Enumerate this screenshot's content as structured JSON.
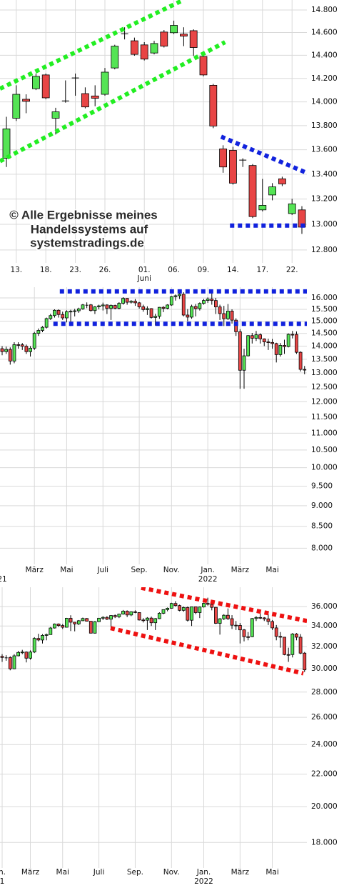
{
  "chart_data": [
    {
      "type": "candlestick",
      "log_scale": true,
      "grid": true,
      "up_color": "#55e455",
      "down_color": "#e84545",
      "annotations": [
        "© Alle Ergebnisse meines",
        "Handelssystems auf",
        "systemstradings.de"
      ],
      "categories": [
        null,
        "13.",
        null,
        null,
        "18.",
        null,
        null,
        "23.",
        null,
        null,
        "26.",
        null,
        null,
        null,
        "01.",
        null,
        null,
        "06.",
        null,
        null,
        "09.",
        null,
        null,
        "14.",
        null,
        null,
        "17.",
        null,
        null,
        "22.",
        null
      ],
      "x_sublabels": [
        {
          "index": 14,
          "label": "Juni"
        }
      ],
      "open": [
        13530,
        13862,
        14022,
        14112,
        14230,
        13862,
        14011,
        14207,
        14070,
        14050,
        14064,
        14290,
        14592,
        14527,
        14491,
        14420,
        14604,
        14598,
        14586,
        14616,
        14390,
        14141,
        13607,
        13595,
        13518,
        13471,
        13114,
        13233,
        13363,
        13085,
        13114
      ],
      "high": [
        13874,
        14141,
        14064,
        14242,
        14242,
        13950,
        14183,
        14242,
        14123,
        14141,
        14290,
        14492,
        14646,
        14555,
        14515,
        14527,
        14622,
        14705,
        14646,
        14628,
        14420,
        14153,
        13637,
        13625,
        13530,
        13483,
        13362,
        13328,
        13380,
        13202,
        13143
      ],
      "low": [
        13459,
        13839,
        13904,
        14100,
        14022,
        13726,
        13993,
        14052,
        13945,
        13963,
        14052,
        14278,
        14539,
        14396,
        14355,
        14408,
        14468,
        14586,
        14480,
        14396,
        14218,
        13779,
        13412,
        13316,
        13459,
        13049,
        13102,
        13190,
        13304,
        13073,
        12925
      ],
      "close": [
        13773,
        14064,
        14005,
        14218,
        14034,
        13916,
        14011,
        14207,
        13957,
        14030,
        14254,
        14480,
        14592,
        14408,
        14367,
        14503,
        14480,
        14663,
        14568,
        14468,
        14230,
        13797,
        13459,
        13328,
        13518,
        13061,
        13150,
        13298,
        13322,
        13162,
        12978
      ],
      "trendlines": [
        {
          "color": "#22ee22",
          "points": [
            [
              -0.65,
              14112
            ],
            [
              17.8,
              14883
            ]
          ]
        },
        {
          "color": "#22ee22",
          "points": [
            [
              -0.65,
              13506
            ],
            [
              22.2,
              14515
            ]
          ]
        },
        {
          "color": "#1122dd",
          "points": [
            [
              21.8,
              13708
            ],
            [
              30.5,
              13411
            ]
          ]
        },
        {
          "color": "#1122dd",
          "points": [
            [
              22.7,
              12990
            ],
            [
              30.5,
              12990
            ]
          ]
        }
      ],
      "ylim": [
        12700,
        14890
      ],
      "yticks": [
        {
          "value": 12800,
          "label": "12.800"
        },
        {
          "value": 13000,
          "label": "13.000"
        },
        {
          "value": 13200,
          "label": "13.200"
        },
        {
          "value": 13400,
          "label": "13.400"
        },
        {
          "value": 13600,
          "label": "13.600"
        },
        {
          "value": 13800,
          "label": "13.800"
        },
        {
          "value": 14000,
          "label": "14.000"
        },
        {
          "value": 14200,
          "label": "14.200"
        },
        {
          "value": 14400,
          "label": "14.400"
        },
        {
          "value": 14600,
          "label": "14.600"
        },
        {
          "value": 14800,
          "label": "14.800"
        }
      ]
    },
    {
      "type": "candlestick",
      "log_scale": true,
      "grid": true,
      "up_color": "#55e455",
      "down_color": "#e84545",
      "categories": [
        null,
        null,
        null,
        null,
        null,
        null,
        null,
        null,
        "März",
        null,
        null,
        null,
        null,
        null,
        null,
        null,
        "Mai",
        null,
        null,
        null,
        null,
        null,
        null,
        null,
        null,
        "Juli",
        null,
        null,
        null,
        null,
        null,
        null,
        null,
        null,
        "Sep.",
        null,
        null,
        null,
        null,
        null,
        null,
        null,
        "Nov.",
        null,
        null,
        null,
        null,
        null,
        null,
        null,
        null,
        "Jan.",
        null,
        null,
        null,
        null,
        null,
        null,
        null,
        "März",
        null,
        null,
        null,
        null,
        null,
        null,
        null,
        "Mai",
        null,
        null,
        null,
        null,
        null,
        null,
        null,
        null
      ],
      "x_sublabels": [
        {
          "index": 0,
          "label": "21"
        },
        {
          "index": 51,
          "label": "2022"
        }
      ],
      "open": [
        13900,
        13788,
        13873,
        13433,
        14056,
        14050,
        13993,
        13786,
        13920,
        14502,
        14621,
        14749,
        15107,
        15234,
        15459,
        15280,
        15136,
        15400,
        15417,
        15437,
        15520,
        15693,
        15693,
        15448,
        15607,
        15650,
        15688,
        15540,
        15669,
        15544,
        15761,
        15977,
        15808,
        15852,
        15781,
        15609,
        15490,
        15531,
        15156,
        15206,
        15587,
        15542,
        15688,
        16054,
        16094,
        16160,
        15257,
        15169,
        15623,
        15532,
        15756,
        15885,
        15947,
        15883,
        15603,
        15318,
        15100,
        15425,
        15042,
        14567,
        13094,
        13628,
        14413,
        14306,
        14446,
        14284,
        14164,
        14142,
        14098,
        13674,
        14027,
        13982,
        14462,
        14460,
        13762,
        13126
      ],
      "high": [
        14000,
        13980,
        13950,
        14150,
        14150,
        14120,
        14060,
        14000,
        14560,
        14700,
        14800,
        15150,
        15310,
        15500,
        15500,
        15400,
        15460,
        15480,
        15520,
        15570,
        15730,
        15800,
        15730,
        15640,
        15700,
        15790,
        15720,
        15710,
        15700,
        15810,
        16030,
        15990,
        15900,
        15950,
        15820,
        15700,
        15630,
        15550,
        15310,
        15600,
        15640,
        15720,
        16080,
        16150,
        16290,
        16250,
        15510,
        15700,
        15730,
        15800,
        15950,
        16020,
        16290,
        16000,
        15700,
        15650,
        15730,
        15500,
        15120,
        14670,
        13900,
        14430,
        14520,
        14600,
        14500,
        14300,
        14290,
        14280,
        14130,
        14120,
        14250,
        14500,
        14600,
        14580,
        13800,
        13250
      ],
      "low": [
        13650,
        13700,
        13300,
        13350,
        13900,
        13850,
        13700,
        13600,
        13850,
        14400,
        14550,
        14700,
        15050,
        15150,
        15150,
        15050,
        14950,
        14800,
        15200,
        15350,
        15480,
        15550,
        15400,
        15300,
        15500,
        15450,
        15300,
        15050,
        15500,
        15500,
        15700,
        15700,
        15750,
        15650,
        15530,
        15400,
        15260,
        15110,
        14820,
        15100,
        15380,
        15500,
        15650,
        15880,
        15950,
        15200,
        15000,
        15100,
        15200,
        15450,
        15700,
        15780,
        15700,
        15300,
        15050,
        14800,
        15050,
        14900,
        14400,
        12440,
        12440,
        13600,
        14100,
        14200,
        14100,
        14000,
        13850,
        13900,
        13380,
        13600,
        13700,
        13950,
        14300,
        13700,
        13050,
        12950
      ],
      "close": [
        13788,
        13873,
        13433,
        14056,
        14050,
        13993,
        13786,
        13920,
        14502,
        14621,
        14749,
        15107,
        15234,
        15459,
        15280,
        15136,
        15400,
        15417,
        15437,
        15520,
        15693,
        15693,
        15448,
        15607,
        15650,
        15688,
        15540,
        15669,
        15544,
        15761,
        15977,
        15808,
        15852,
        15781,
        15609,
        15490,
        15531,
        15156,
        15206,
        15587,
        15542,
        15688,
        16054,
        16094,
        16160,
        15257,
        15169,
        15623,
        15532,
        15756,
        15885,
        15947,
        15883,
        15603,
        15318,
        15100,
        15425,
        15042,
        14567,
        13094,
        13628,
        14413,
        14306,
        14446,
        14284,
        14164,
        14142,
        14098,
        13674,
        14027,
        13982,
        14462,
        14460,
        13762,
        13126,
        13118
      ],
      "trendlines": [
        {
          "color": "#1122dd",
          "points": [
            [
              14.3,
              16290
            ],
            [
              75.9,
              16290
            ]
          ]
        },
        {
          "color": "#1122dd",
          "points": [
            [
              12.7,
              14893
            ],
            [
              75.9,
              14893
            ]
          ]
        }
      ],
      "ylim": [
        7650,
        16480
      ],
      "yticks": [
        {
          "value": 8000,
          "label": "8.000"
        },
        {
          "value": 8500,
          "label": "8.500"
        },
        {
          "value": 9000,
          "label": "9.000"
        },
        {
          "value": 9500,
          "label": "9.500"
        },
        {
          "value": 10000,
          "label": "10.000"
        },
        {
          "value": 10500,
          "label": "10.500"
        },
        {
          "value": 11000,
          "label": "11.000"
        },
        {
          "value": 11500,
          "label": "11.500"
        },
        {
          "value": 12000,
          "label": "12.000"
        },
        {
          "value": 12500,
          "label": "12.500"
        },
        {
          "value": 13000,
          "label": "13.000"
        },
        {
          "value": 13500,
          "label": "13.500"
        },
        {
          "value": 14000,
          "label": "14.000"
        },
        {
          "value": 14500,
          "label": "14.500"
        },
        {
          "value": 15000,
          "label": "15.000"
        },
        {
          "value": 15500,
          "label": "15.500"
        },
        {
          "value": 16000,
          "label": "16.000"
        }
      ]
    },
    {
      "type": "candlestick",
      "log_scale": true,
      "grid": true,
      "up_color": "#55e455",
      "down_color": "#e84545",
      "categories": [
        "n.",
        null,
        null,
        null,
        null,
        null,
        null,
        "März",
        null,
        null,
        null,
        null,
        null,
        null,
        null,
        "Mai",
        null,
        null,
        null,
        null,
        null,
        null,
        null,
        null,
        "Juli",
        null,
        null,
        null,
        null,
        null,
        null,
        null,
        null,
        "Sep.",
        null,
        null,
        null,
        null,
        null,
        null,
        null,
        null,
        "Nov.",
        null,
        null,
        null,
        null,
        null,
        null,
        null,
        "Jan.",
        null,
        null,
        null,
        null,
        null,
        null,
        null,
        null,
        "März",
        null,
        null,
        null,
        null,
        null,
        null,
        null,
        "Mai",
        null,
        null,
        null,
        null,
        null,
        null,
        null,
        null
      ],
      "x_sublabels": [
        {
          "index": 0,
          "label": "1"
        },
        {
          "index": 50,
          "label": "2022"
        }
      ],
      "open": [
        31100,
        30997,
        30997,
        29983,
        31148,
        31458,
        31494,
        30932,
        31496,
        32779,
        32628,
        33072,
        33153,
        33800,
        34201,
        34043,
        33875,
        34778,
        34382,
        34208,
        34529,
        34756,
        34480,
        33290,
        34434,
        34786,
        34870,
        34688,
        35062,
        34935,
        35209,
        35516,
        35120,
        35455,
        35370,
        34607,
        34584,
        34798,
        34326,
        34746,
        35295,
        35677,
        35820,
        36328,
        36100,
        35601,
        35899,
        34580,
        35971,
        35365,
        35951,
        36338,
        36232,
        35912,
        34265,
        34725,
        35090,
        34739,
        34079,
        34059,
        33615,
        32945,
        32944,
        34755,
        34861,
        34818,
        34722,
        34451,
        33811,
        32977,
        32899,
        31262,
        31261,
        33212,
        32899,
        31393
      ],
      "high": [
        31300,
        31200,
        31100,
        31300,
        31600,
        31700,
        31550,
        31650,
        32900,
        33230,
        33200,
        33250,
        33900,
        34250,
        34260,
        34200,
        34820,
        35090,
        34400,
        34600,
        34850,
        34800,
        34500,
        34500,
        34800,
        35000,
        35000,
        35100,
        35170,
        35250,
        35630,
        35600,
        35500,
        35600,
        35400,
        34800,
        34900,
        34950,
        34800,
        35400,
        35700,
        35900,
        36400,
        36570,
        36200,
        36000,
        36000,
        36000,
        36000,
        36000,
        36400,
        36950,
        36400,
        35950,
        34800,
        35200,
        35800,
        35100,
        34500,
        34300,
        33700,
        33400,
        34800,
        35000,
        35400,
        34900,
        35200,
        34600,
        34100,
        33400,
        32900,
        31900,
        33300,
        33300,
        33200,
        31500
      ],
      "low": [
        30600,
        30700,
        29850,
        29950,
        31100,
        31300,
        30550,
        30800,
        31400,
        32500,
        32300,
        32600,
        33150,
        33750,
        33900,
        33700,
        33850,
        33500,
        33470,
        34100,
        34500,
        34450,
        33270,
        33260,
        34400,
        34600,
        34600,
        33740,
        34800,
        34800,
        35150,
        34900,
        35000,
        35300,
        34550,
        34350,
        33600,
        34000,
        33600,
        34700,
        35200,
        35500,
        35800,
        36000,
        35500,
        35450,
        34450,
        34000,
        35200,
        34800,
        35900,
        36100,
        35600,
        34200,
        33150,
        34600,
        34600,
        33700,
        33600,
        32300,
        32500,
        32600,
        32900,
        34500,
        34700,
        34500,
        34100,
        33600,
        32600,
        31900,
        31200,
        30600,
        31000,
        32600,
        31300,
        29700
      ],
      "close": [
        30997,
        30997,
        29983,
        31148,
        31458,
        31494,
        30932,
        31496,
        32779,
        32628,
        33072,
        33153,
        33800,
        34201,
        34043,
        33875,
        34778,
        34382,
        34208,
        34529,
        34756,
        34480,
        33290,
        34434,
        34786,
        34870,
        34688,
        35062,
        34935,
        35209,
        35516,
        35120,
        35455,
        35370,
        34607,
        34584,
        34798,
        34326,
        34746,
        35295,
        35677,
        35820,
        36328,
        36100,
        35601,
        35899,
        34580,
        35971,
        35365,
        35951,
        36338,
        36232,
        35912,
        34265,
        34725,
        35090,
        34739,
        34079,
        34059,
        33615,
        32945,
        32944,
        34755,
        34861,
        34818,
        34722,
        34451,
        33811,
        32977,
        32899,
        31262,
        31261,
        33212,
        32899,
        31393,
        29888
      ],
      "trendlines": [
        {
          "color": "#ee1111",
          "points": [
            [
              34.5,
              38034
            ],
            [
              75.6,
              34510
            ]
          ]
        },
        {
          "color": "#ee1111",
          "points": [
            [
              26.9,
              33787
            ],
            [
              74.7,
              29580
            ]
          ]
        }
      ],
      "ylim": [
        16700,
        38100
      ],
      "yticks": [
        {
          "value": 18000,
          "label": "18.000"
        },
        {
          "value": 20000,
          "label": "20.000"
        },
        {
          "value": 22000,
          "label": "22.000"
        },
        {
          "value": 24000,
          "label": "24.000"
        },
        {
          "value": 26000,
          "label": "26.000"
        },
        {
          "value": 28000,
          "label": "28.000"
        },
        {
          "value": 30000,
          "label": "30.000"
        },
        {
          "value": 32000,
          "label": "32.000"
        },
        {
          "value": 34000,
          "label": "34.000"
        },
        {
          "value": 36000,
          "label": "36.000"
        }
      ]
    }
  ]
}
